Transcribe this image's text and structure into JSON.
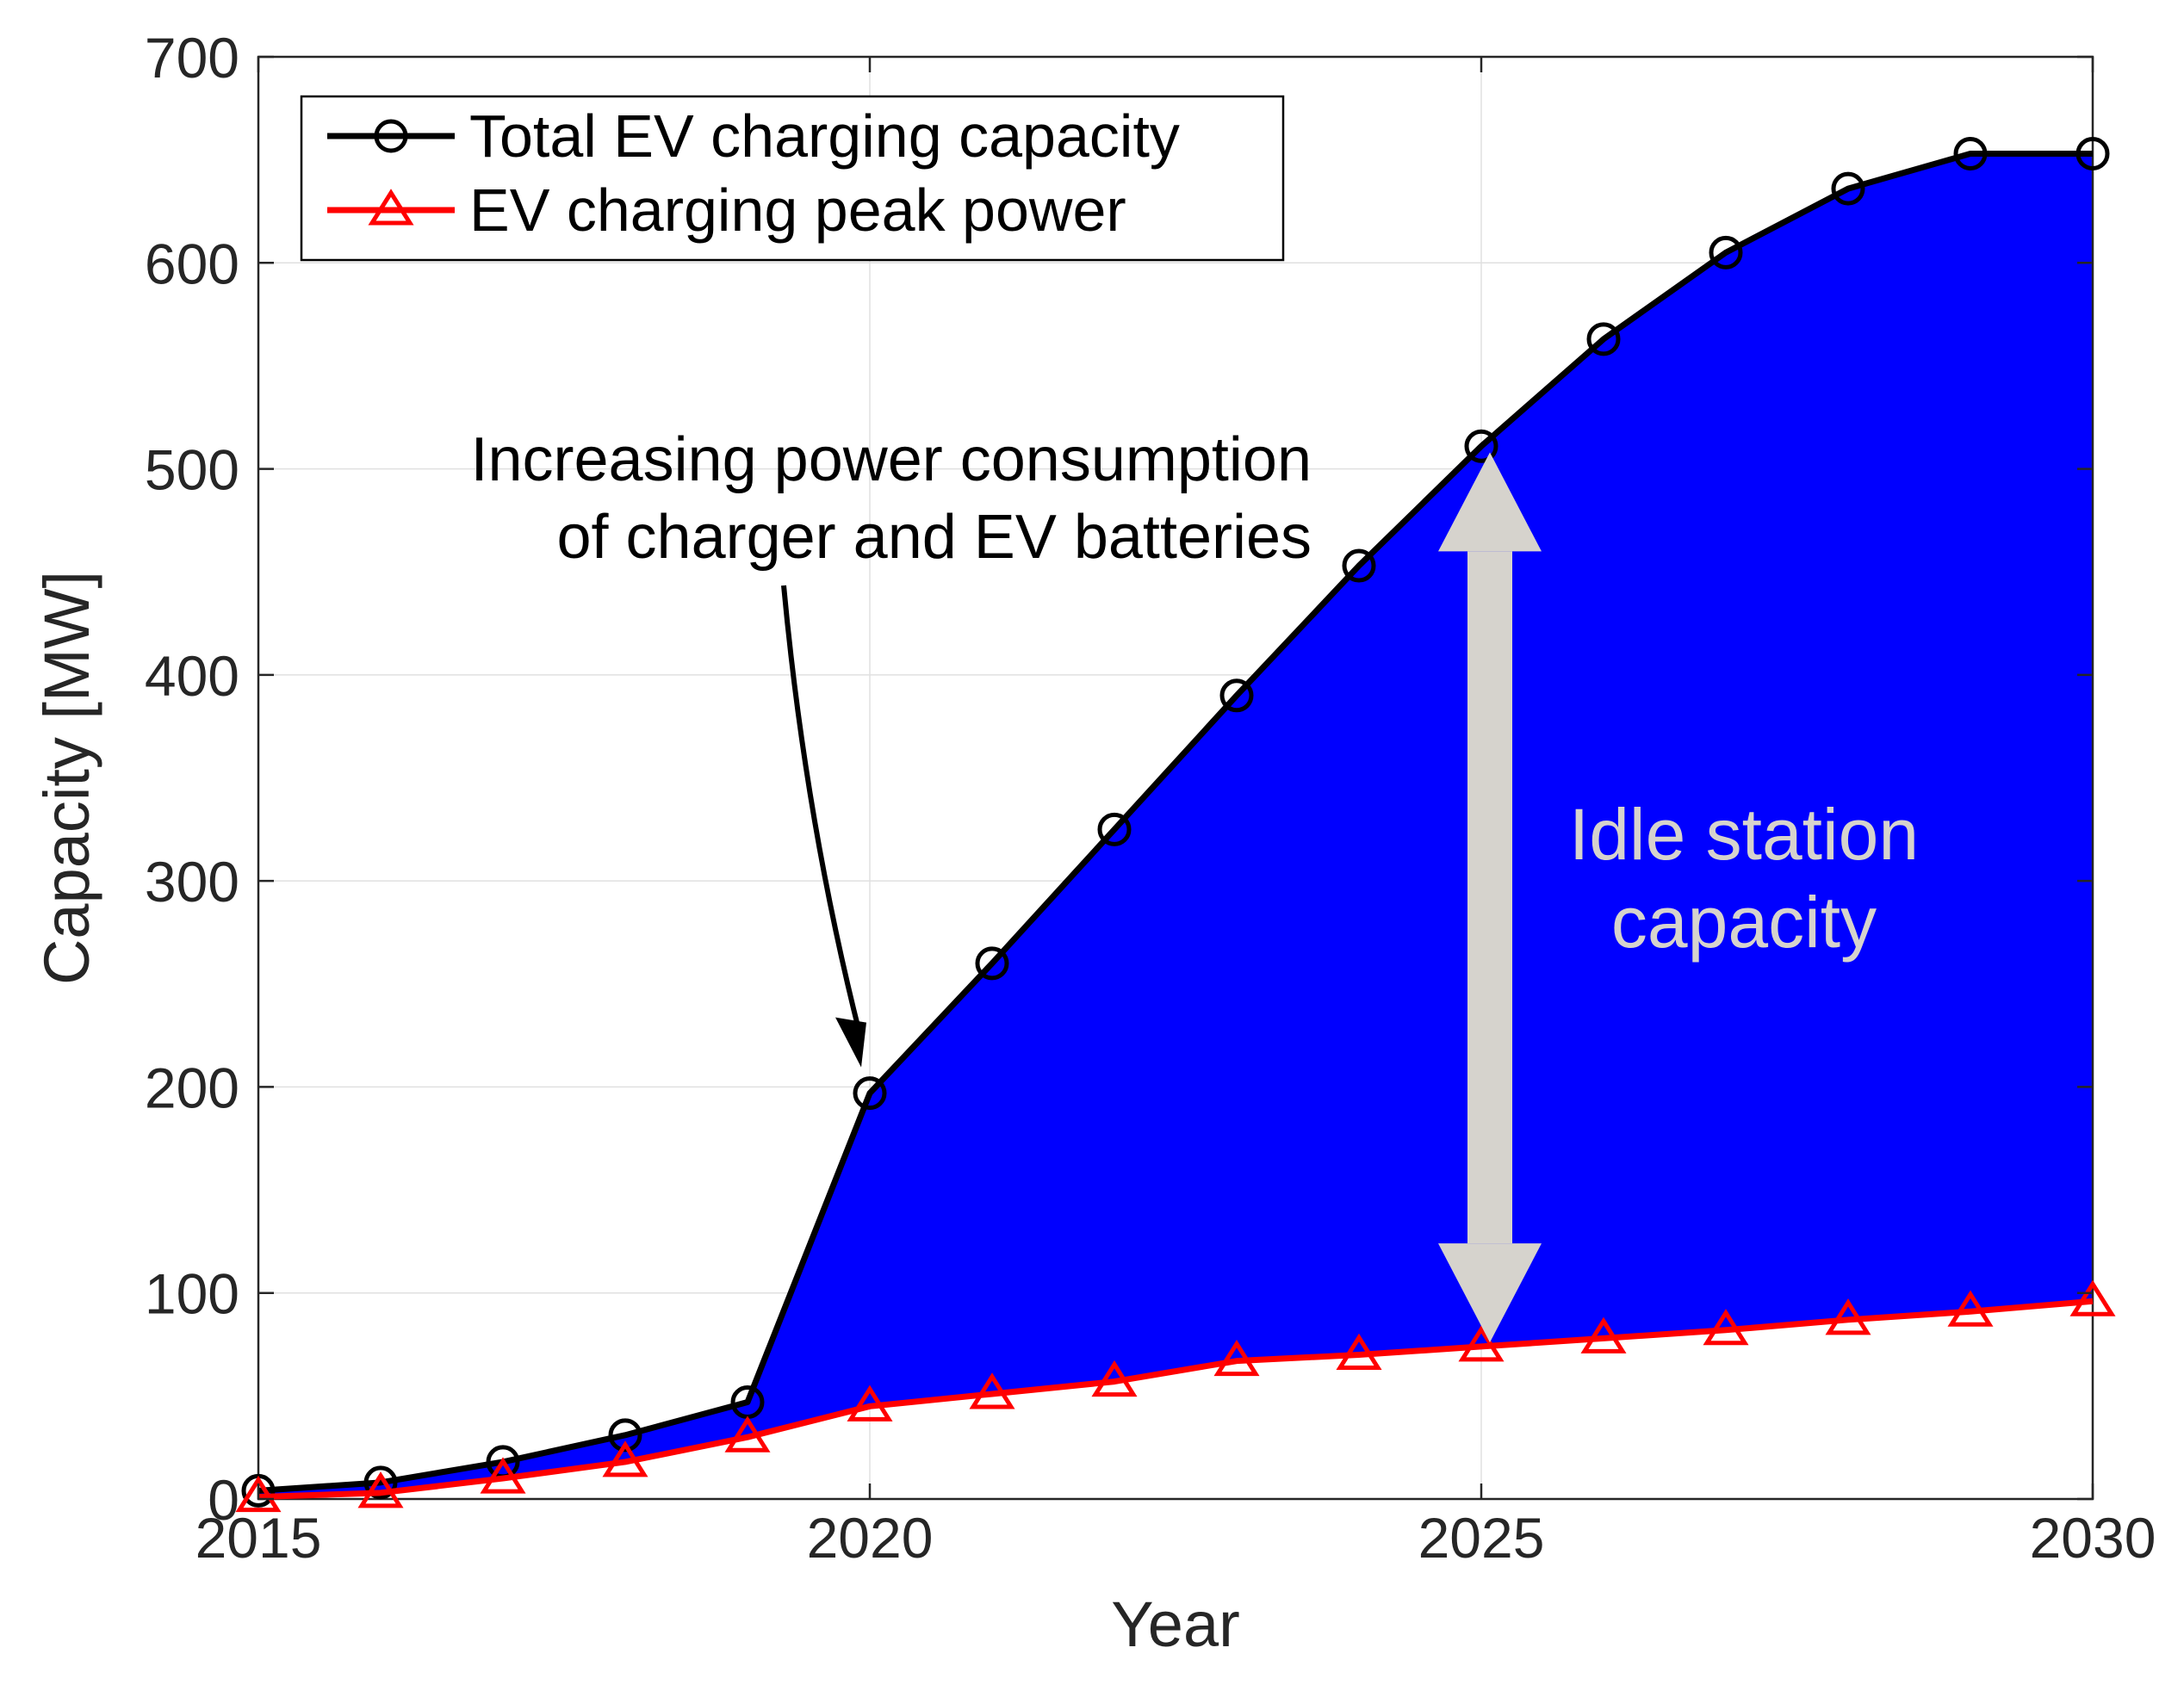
{
  "chart_data": {
    "type": "line",
    "title": "",
    "xlabel": "Year",
    "ylabel": "Capacity [MW]",
    "xlim": [
      2015,
      2030
    ],
    "ylim": [
      0,
      700
    ],
    "xticks": [
      2015,
      2020,
      2025,
      2030
    ],
    "yticks": [
      0,
      100,
      200,
      300,
      400,
      500,
      600,
      700
    ],
    "grid": true,
    "x": [
      2015,
      2016,
      2017,
      2018,
      2019,
      2020,
      2021,
      2022,
      2023,
      2024,
      2025,
      2026,
      2027,
      2028,
      2029,
      2030
    ],
    "series": [
      {
        "name": "Total EV charging capacity",
        "color": "#000000",
        "marker": "circle",
        "values": [
          4,
          8,
          18,
          31,
          47,
          197,
          260,
          325,
          390,
          453,
          511,
          563,
          605,
          636,
          653,
          653
        ]
      },
      {
        "name": "EV charging peak power",
        "color": "#ff0000",
        "marker": "triangle",
        "values": [
          1,
          3,
          10,
          18,
          30,
          45,
          51,
          57,
          67,
          70,
          74,
          78,
          82,
          87,
          91,
          96
        ]
      }
    ],
    "fill_between": {
      "color": "#0000ff",
      "upper": "Total EV charging capacity",
      "lower": "EV charging peak power"
    },
    "legend_position": "top-left",
    "annotations": {
      "arrow_text_line1": "Increasing power consumption",
      "arrow_text_line2": "of charger and EV batteries",
      "arrow_target": {
        "x": 2020,
        "y": 197
      },
      "idle_text_line1": "Idle station",
      "idle_text_line2": "capacity",
      "idle_arrow": {
        "x": 2025,
        "y_from": 76,
        "y_to": 508
      },
      "idle_color": "#d6d3cd"
    }
  }
}
